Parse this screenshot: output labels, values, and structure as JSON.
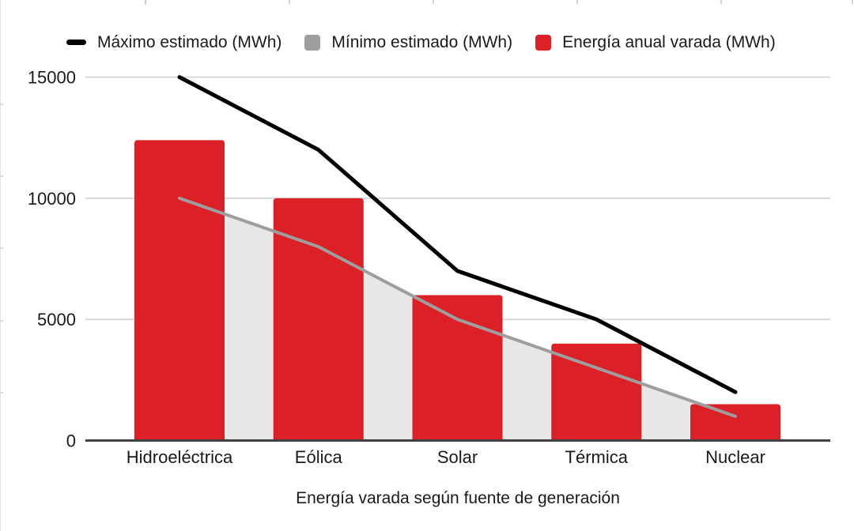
{
  "chart_data": {
    "type": "combo",
    "title": "",
    "xlabel": "Energía varada según fuente de generación",
    "ylabel": "",
    "categories": [
      "Hidroeléctrica",
      "Eólica",
      "Solar",
      "Térmica",
      "Nuclear"
    ],
    "series": [
      {
        "name": "Máximo estimado (MWh)",
        "type": "line",
        "color": "#000000",
        "values": [
          15000,
          12000,
          7000,
          5000,
          2000
        ]
      },
      {
        "name": "Mínimo estimado (MWh)",
        "type": "area",
        "color": "#9e9e9e",
        "fill": "#e7e7e7",
        "values": [
          10000,
          8000,
          5000,
          3000,
          1000
        ]
      },
      {
        "name": "Energía anual varada (MWh)",
        "type": "bar",
        "color": "#db2127",
        "values": [
          12400,
          10000,
          6000,
          4000,
          1500
        ]
      }
    ],
    "yticks": [
      0,
      5000,
      10000,
      15000
    ],
    "ylim": [
      0,
      15000
    ],
    "grid": true,
    "legend_position": "top",
    "gridline_color": "#d9d9d9",
    "baseline_color": "#424242",
    "background_color": "#ffffff"
  }
}
